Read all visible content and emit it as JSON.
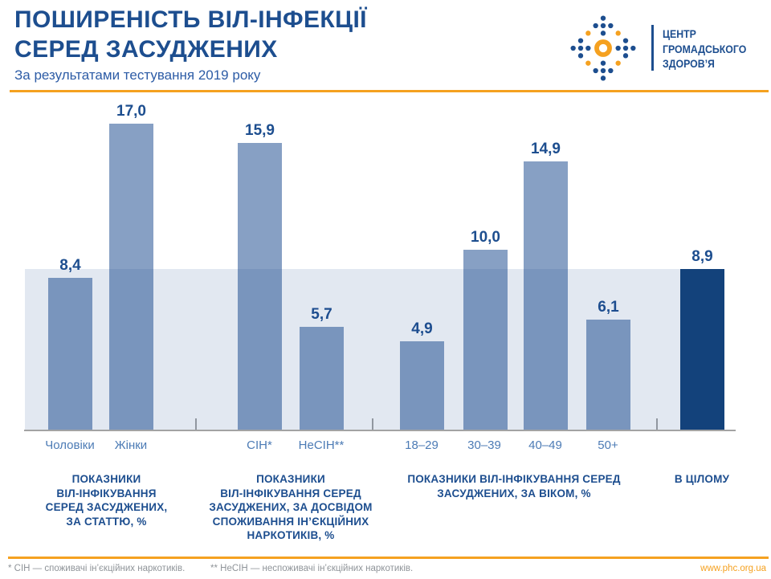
{
  "header": {
    "title_line1": "ПОШИРЕНІСТЬ ВІЛ-ІНФЕКЦІЇ",
    "title_line2": "СЕРЕД ЗАСУДЖЕНИХ",
    "subtitle": "За результатами тестування 2019 року"
  },
  "logo": {
    "org_name": "ЦЕНТР\nГРОМАДСЬКОГО\nЗДОРОВ’Я"
  },
  "chart_data": {
    "type": "bar",
    "unit": "%",
    "decimal_style": "comma",
    "ylim": [
      0,
      18
    ],
    "grid": false,
    "legend": "none",
    "reference_band": {
      "value": 8.9,
      "label": "8,9"
    },
    "groups": [
      {
        "label": "ПОКАЗНИКИ\nВІЛ-ІНФІКУВАННЯ\nСЕРЕД ЗАСУДЖЕНИХ,\nЗА СТАТТЮ, %",
        "bars": [
          {
            "category": "Чоловіки",
            "value": 8.4,
            "display": "8,4"
          },
          {
            "category": "Жінки",
            "value": 17.0,
            "display": "17,0"
          }
        ]
      },
      {
        "label": "ПОКАЗНИКИ\nВІЛ-ІНФІКУВАННЯ СЕРЕД\nЗАСУДЖЕНИХ, ЗА ДОСВІДОМ\nСПОЖИВАННЯ ІН’ЄКЦІЙНИХ\nНАРКОТИКІВ, %",
        "bars": [
          {
            "category": "СІН*",
            "value": 15.9,
            "display": "15,9"
          },
          {
            "category": "НеСІН**",
            "value": 5.7,
            "display": "5,7"
          }
        ]
      },
      {
        "label": "ПОКАЗНИКИ ВІЛ-ІНФІКУВАННЯ СЕРЕД\nЗАСУДЖЕНИХ, ЗА ВІКОМ, %",
        "bars": [
          {
            "category": "18–29",
            "value": 4.9,
            "display": "4,9"
          },
          {
            "category": "30–39",
            "value": 10.0,
            "display": "10,0"
          },
          {
            "category": "40–49",
            "value": 14.9,
            "display": "14,9"
          },
          {
            "category": "50+",
            "value": 6.1,
            "display": "6,1"
          }
        ]
      },
      {
        "label": "В ЦІЛОМУ",
        "bars": [
          {
            "category": "",
            "value": 8.9,
            "display": "8,9",
            "highlight": true
          }
        ]
      }
    ]
  },
  "footer": {
    "note1": "* СІН — споживачі ін’єкційних наркотиків.",
    "note2": "** НеСІН — неспоживачі ін’єкційних наркотиків.",
    "url": "www.phc.org.ua"
  },
  "colors": {
    "navy": "#1d4e8f",
    "subtitle_blue": "#2d5ca6",
    "bar_blue": "#87a0c4",
    "bar_dark": "#13427b",
    "orange": "#f5a120",
    "axis_gray": "#a3a3a3",
    "note_gray": "#8f9499",
    "category_blue": "#4c7bb5",
    "band": "rgba(29,78,143,0.13)"
  }
}
